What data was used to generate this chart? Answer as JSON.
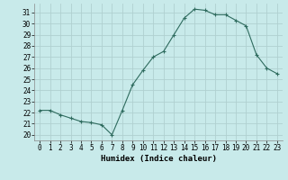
{
  "x": [
    0,
    1,
    2,
    3,
    4,
    5,
    6,
    7,
    8,
    9,
    10,
    11,
    12,
    13,
    14,
    15,
    16,
    17,
    18,
    19,
    20,
    21,
    22,
    23
  ],
  "y": [
    22.2,
    22.2,
    21.8,
    21.5,
    21.2,
    21.1,
    20.9,
    20.0,
    22.2,
    24.5,
    25.8,
    27.0,
    27.5,
    29.0,
    30.5,
    31.3,
    31.2,
    30.8,
    30.8,
    30.3,
    29.8,
    27.2,
    26.0,
    25.5
  ],
  "xlabel": "Humidex (Indice chaleur)",
  "ylim": [
    19.5,
    31.8
  ],
  "xlim": [
    -0.5,
    23.5
  ],
  "yticks": [
    20,
    21,
    22,
    23,
    24,
    25,
    26,
    27,
    28,
    29,
    30,
    31
  ],
  "xticks": [
    0,
    1,
    2,
    3,
    4,
    5,
    6,
    7,
    8,
    9,
    10,
    11,
    12,
    13,
    14,
    15,
    16,
    17,
    18,
    19,
    20,
    21,
    22,
    23
  ],
  "line_color": "#2e6b5e",
  "marker": "+",
  "bg_color": "#c8eaea",
  "grid_color": "#b0d0d0",
  "axis_fontsize": 6.5,
  "tick_fontsize": 5.5
}
